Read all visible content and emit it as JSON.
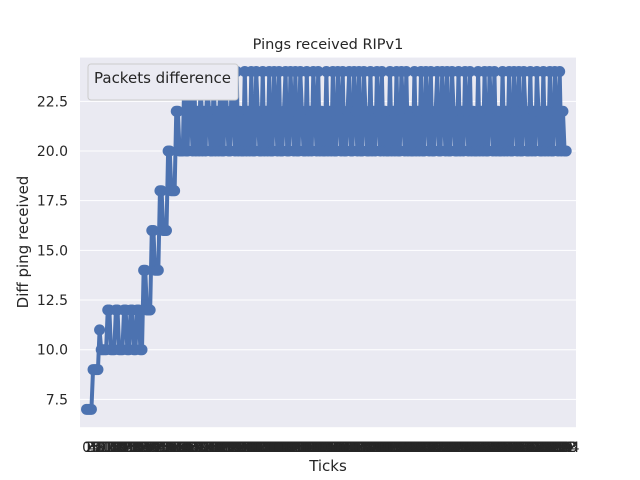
{
  "chart_data": {
    "type": "line",
    "title": "Pings received RIPv1",
    "xlabel": "Ticks",
    "ylabel": "Diff ping received",
    "ylim": [
      6.1,
      24.7
    ],
    "yticks": [
      7.5,
      10.0,
      12.5,
      15.0,
      17.5,
      20.0,
      22.5
    ],
    "ytick_labels": [
      "7.5",
      "10.0",
      "12.5",
      "15.0",
      "17.5",
      "20.0",
      "22.5"
    ],
    "xlim": [
      -4,
      300
    ],
    "grid": true,
    "legend": {
      "placement": "top-left",
      "title": "Packets difference"
    },
    "colors": {
      "line": "#4c72b0",
      "background": "#eaeaf2",
      "grid": "#ffffff"
    },
    "x_start": 0,
    "x_step": 1,
    "y": [
      7,
      7,
      7,
      7,
      9,
      9,
      9,
      9,
      11,
      10,
      10,
      10,
      10,
      12,
      12,
      10,
      10,
      10,
      12,
      12,
      10,
      10,
      10,
      12,
      12,
      10,
      10,
      12,
      12,
      10,
      10,
      12,
      12,
      10,
      10,
      14,
      14,
      12,
      12,
      12,
      16,
      16,
      14,
      14,
      14,
      18,
      18,
      16,
      16,
      16,
      20,
      20,
      18,
      18,
      18,
      22,
      22,
      20,
      20,
      20,
      24,
      20,
      20,
      24,
      22,
      20,
      24,
      20,
      22,
      20,
      24,
      20,
      22,
      20,
      24,
      22,
      20,
      20,
      24,
      20,
      22,
      20,
      24,
      20,
      20,
      24,
      22,
      20,
      20,
      24,
      22,
      20,
      24,
      20,
      22,
      20,
      20,
      24,
      20,
      22,
      20,
      24,
      20,
      20,
      24,
      22,
      20,
      20,
      24,
      20,
      22,
      20,
      24,
      20,
      20,
      24,
      22,
      20,
      24,
      20,
      20,
      22,
      24,
      20,
      20,
      24,
      22,
      20,
      24,
      20,
      20,
      24,
      22,
      20,
      20,
      24,
      20,
      22,
      20,
      24,
      22,
      20,
      24,
      20,
      22,
      20,
      20,
      24,
      20,
      22,
      20,
      24,
      20,
      20,
      24,
      22,
      20,
      24,
      20,
      20,
      22,
      24,
      20,
      20,
      24,
      22,
      20,
      24,
      20,
      20,
      24,
      22,
      20,
      20,
      24,
      20,
      22,
      20,
      24,
      22,
      20,
      24,
      20,
      22,
      20,
      20,
      24,
      20,
      22,
      20,
      24,
      20,
      20,
      24,
      22,
      20,
      24,
      20,
      22,
      20,
      20,
      24,
      20,
      22,
      20,
      24,
      20,
      20,
      24,
      22,
      20,
      24,
      20,
      20,
      22,
      24,
      20,
      20,
      24,
      22,
      20,
      24,
      20,
      20,
      24,
      22,
      20,
      20,
      24,
      20,
      22,
      20,
      24,
      22,
      20,
      24,
      20,
      22,
      20,
      20,
      24,
      20,
      22,
      20,
      24,
      20,
      20,
      24,
      22,
      20,
      24,
      20,
      22,
      20,
      20,
      24,
      20,
      22,
      20,
      24,
      20,
      20,
      24,
      22,
      20,
      24,
      20,
      20,
      24,
      22,
      20,
      20,
      24,
      20,
      22,
      20,
      24,
      22,
      20,
      20,
      24,
      20,
      22,
      20,
      24,
      20,
      20,
      24,
      22,
      20,
      24,
      20,
      22,
      20,
      20
    ]
  }
}
